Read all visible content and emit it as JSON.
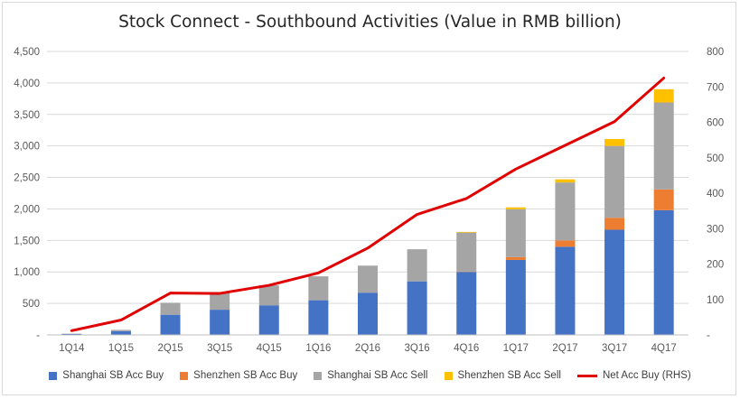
{
  "chart_data": {
    "type": "bar",
    "title": "Stock Connect - Southbound Activities (Value in RMB billion)",
    "categories": [
      "1Q14",
      "1Q15",
      "2Q15",
      "3Q15",
      "4Q15",
      "1Q16",
      "2Q16",
      "3Q16",
      "4Q16",
      "1Q17",
      "2Q17",
      "3Q17",
      "4Q17"
    ],
    "stacked": true,
    "series": [
      {
        "name": "Shanghai SB Acc Buy",
        "color": "#4472C4",
        "values": [
          15,
          60,
          320,
          400,
          470,
          550,
          670,
          850,
          1000,
          1190,
          1400,
          1670,
          1980
        ]
      },
      {
        "name": "Shenzhen SB Acc Buy",
        "color": "#ED7D31",
        "values": [
          0,
          0,
          0,
          0,
          0,
          0,
          0,
          0,
          5,
          45,
          100,
          190,
          330
        ]
      },
      {
        "name": "Shanghai SB Acc Sell",
        "color": "#A5A5A5",
        "values": [
          5,
          20,
          190,
          280,
          320,
          380,
          430,
          510,
          620,
          760,
          920,
          1140,
          1380
        ]
      },
      {
        "name": "Shenzhen SB Acc Sell",
        "color": "#FFC000",
        "values": [
          0,
          0,
          0,
          0,
          0,
          0,
          0,
          0,
          10,
          30,
          50,
          110,
          210
        ]
      }
    ],
    "line_series": {
      "name": "Net Acc Buy (RHS)",
      "color": "#E00000",
      "axis": "right",
      "values": [
        12,
        42,
        118,
        117,
        140,
        175,
        245,
        340,
        385,
        468,
        535,
        602,
        725
      ]
    },
    "y_left": {
      "ylim": [
        0,
        4500
      ],
      "ticks": [
        "-",
        "500",
        "1,000",
        "1,500",
        "2,000",
        "2,500",
        "3,000",
        "3,500",
        "4,000",
        "4,500"
      ]
    },
    "y_right": {
      "ylim": [
        0,
        800
      ],
      "ticks": [
        "-",
        "100",
        "200",
        "300",
        "400",
        "500",
        "600",
        "700",
        "800"
      ]
    },
    "grid": true,
    "legend_position": "bottom"
  }
}
